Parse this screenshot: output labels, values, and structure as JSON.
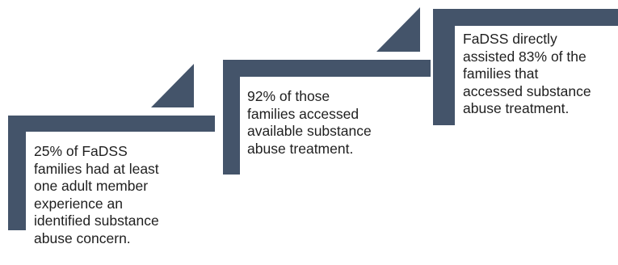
{
  "colors": {
    "shape_fill": "#44546a",
    "text": "#1f1f1f",
    "background": "#ffffff"
  },
  "steps": [
    {
      "text": "25% of FaDSS\nfamilies had at least\none adult member\nexperience an\nidentified substance\nabuse concern."
    },
    {
      "text": "92% of those\nfamilies accessed\navailable substance\nabuse treatment."
    },
    {
      "text": "FaDSS directly\nassisted 83% of the\nfamilies that\naccessed substance\nabuse treatment."
    }
  ]
}
